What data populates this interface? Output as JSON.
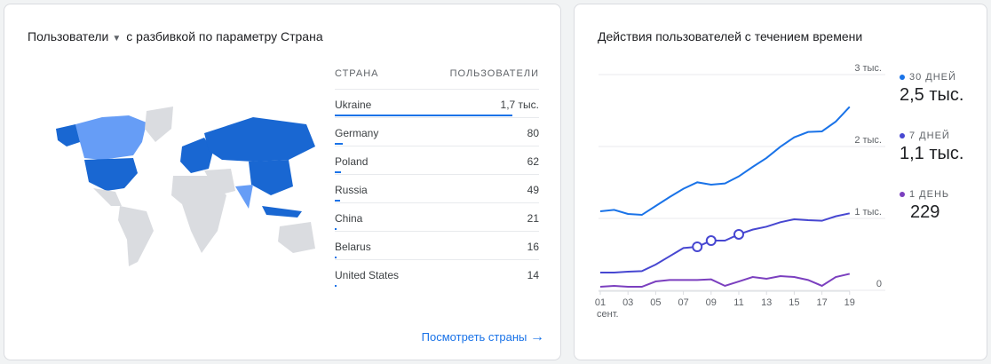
{
  "map_card": {
    "title_metric": "Пользователи",
    "title_rest": "с разбивкой по параметру Страна",
    "col_country": "СТРАНА",
    "col_users": "ПОЛЬЗОВАТЕЛИ",
    "rows": [
      {
        "country": "Ukraine",
        "users": "1,7 тыс.",
        "share": 1
      },
      {
        "country": "Germany",
        "users": "80",
        "share": 0.047
      },
      {
        "country": "Poland",
        "users": "62",
        "share": 0.036
      },
      {
        "country": "Russia",
        "users": "49",
        "share": 0.029
      },
      {
        "country": "China",
        "users": "21",
        "share": 0.012
      },
      {
        "country": "Belarus",
        "users": "16",
        "share": 0.009
      },
      {
        "country": "United States",
        "users": "14",
        "share": 0.008
      }
    ],
    "link": "Посмотреть страны",
    "colors": {
      "high": "#1967d2",
      "mid": "#669df6",
      "low": "#aecbfa",
      "none": "#dadce0"
    }
  },
  "time_card": {
    "title": "Действия пользователей с течением времени",
    "legend": [
      {
        "label": "30 ДНЕЙ",
        "value": "2,5 тыс.",
        "color": "#1a73e8"
      },
      {
        "label": "7 ДНЕЙ",
        "value": "1,1 тыс.",
        "color": "#4747d1"
      },
      {
        "label": "1 ДЕНЬ",
        "value": "229",
        "color": "#7b3fbf"
      }
    ]
  },
  "chart_data": {
    "type": "line",
    "x": [
      1,
      2,
      3,
      4,
      5,
      6,
      7,
      8,
      9,
      10,
      11,
      12,
      13,
      14,
      15,
      16,
      17,
      18,
      19
    ],
    "x_tick_labels": [
      "01",
      "03",
      "05",
      "07",
      "09",
      "11",
      "13",
      "15",
      "17",
      "19"
    ],
    "x_sublabel": "сент.",
    "y_ticks": [
      0,
      1000,
      2000,
      3000
    ],
    "y_tick_labels": [
      "0",
      "1 тыс.",
      "2 тыс.",
      "3 тыс."
    ],
    "ylim": [
      0,
      3000
    ],
    "grid": true,
    "series": [
      {
        "name": "30 ДНЕЙ",
        "color": "#1a73e8",
        "values": [
          1099,
          1119,
          1062,
          1049,
          1173,
          1296,
          1412,
          1502,
          1469,
          1486,
          1584,
          1716,
          1840,
          1996,
          2128,
          2202,
          2210,
          2346,
          2551
        ]
      },
      {
        "name": "7 ДНЕЙ",
        "color": "#4747d1",
        "values": [
          247,
          247,
          259,
          267,
          358,
          473,
          588,
          605,
          691,
          691,
          778,
          844,
          885,
          947,
          988,
          975,
          967,
          1029,
          1070
        ],
        "markers_at": [
          8,
          9,
          11
        ]
      },
      {
        "name": "1 ДЕНЬ",
        "color": "#7b3fbf",
        "values": [
          49,
          62,
          49,
          49,
          123,
          144,
          144,
          144,
          152,
          62,
          123,
          185,
          160,
          198,
          185,
          144,
          62,
          185,
          229
        ]
      }
    ]
  }
}
